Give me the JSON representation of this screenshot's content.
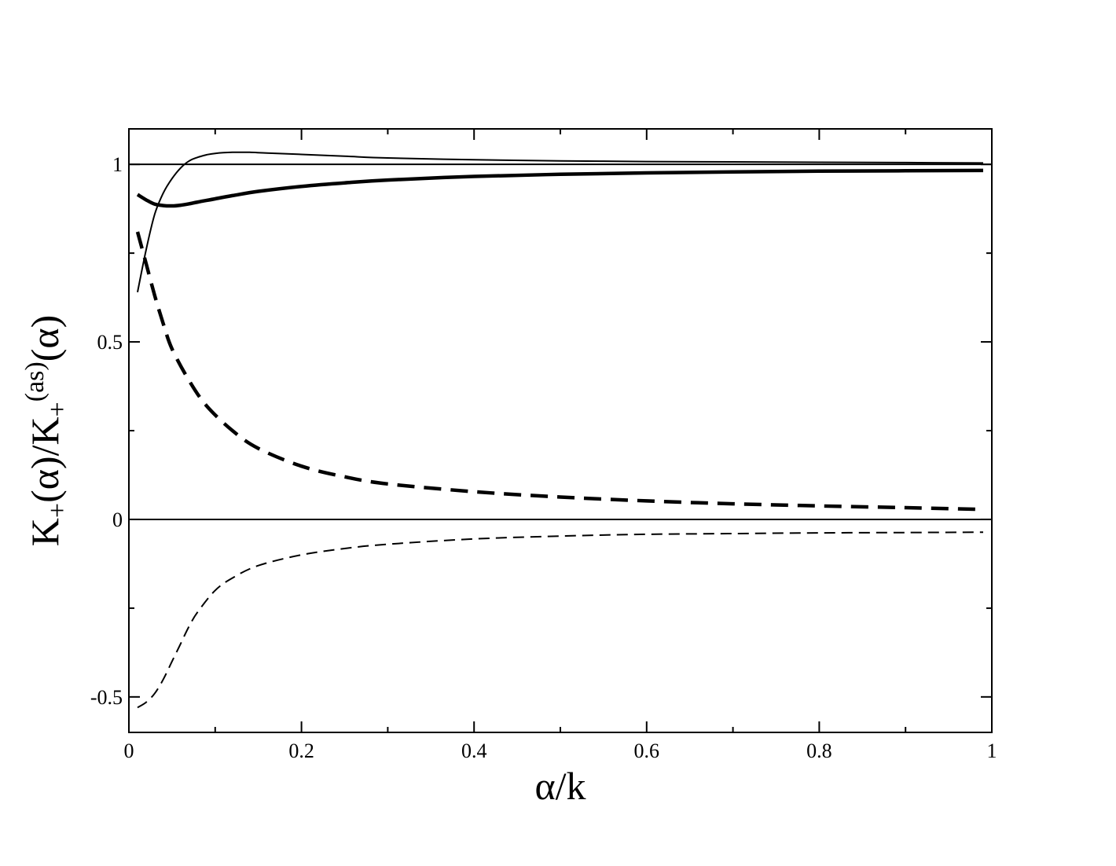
{
  "chart_data": {
    "type": "line",
    "title": "",
    "xlabel": "α/k",
    "ylabel": {
      "parts": [
        {
          "text": "K",
          "kind": "base"
        },
        {
          "text": "+",
          "kind": "sub"
        },
        {
          "text": "(α)/K",
          "kind": "base"
        },
        {
          "text": "+",
          "kind": "sub"
        },
        {
          "text": "(as)",
          "kind": "sup"
        },
        {
          "text": "(α)",
          "kind": "base"
        }
      ]
    },
    "xlim": [
      0,
      1
    ],
    "ylim": [
      -0.6,
      1.1
    ],
    "xticks": [
      0,
      0.2,
      0.4,
      0.6,
      0.8,
      1
    ],
    "xtick_labels": [
      "0",
      "0.2",
      "0.4",
      "0.6",
      "0.8",
      "1"
    ],
    "yticks": [
      -0.5,
      0,
      0.5,
      1
    ],
    "ytick_labels": [
      "-0.5",
      "0",
      "0.5",
      "1"
    ],
    "x_minor_step": 0.1,
    "y_minor_step": 0.25,
    "grid": false,
    "legend": "none",
    "reference_lines": [
      0,
      1
    ],
    "series": [
      {
        "style": "thin-solid",
        "x": [
          0.01,
          0.02,
          0.03,
          0.04,
          0.05,
          0.06,
          0.07,
          0.08,
          0.09,
          0.1,
          0.12,
          0.14,
          0.16,
          0.2,
          0.25,
          0.3,
          0.4,
          0.5,
          0.6,
          0.7,
          0.8,
          0.9,
          0.99
        ],
        "y": [
          0.64,
          0.76,
          0.86,
          0.92,
          0.96,
          0.99,
          1.01,
          1.02,
          1.027,
          1.031,
          1.034,
          1.034,
          1.032,
          1.028,
          1.023,
          1.018,
          1.013,
          1.01,
          1.008,
          1.007,
          1.006,
          1.005,
          1.004
        ]
      },
      {
        "style": "thick-solid",
        "x": [
          0.01,
          0.02,
          0.03,
          0.04,
          0.05,
          0.06,
          0.07,
          0.08,
          0.1,
          0.12,
          0.15,
          0.2,
          0.25,
          0.3,
          0.4,
          0.5,
          0.6,
          0.7,
          0.8,
          0.9,
          0.99
        ],
        "y": [
          0.915,
          0.9,
          0.888,
          0.884,
          0.883,
          0.885,
          0.889,
          0.894,
          0.903,
          0.912,
          0.924,
          0.938,
          0.948,
          0.956,
          0.966,
          0.972,
          0.976,
          0.979,
          0.981,
          0.982,
          0.983
        ]
      },
      {
        "style": "thick-dashed",
        "x": [
          0.01,
          0.02,
          0.03,
          0.04,
          0.05,
          0.07,
          0.09,
          0.12,
          0.15,
          0.2,
          0.25,
          0.3,
          0.4,
          0.5,
          0.6,
          0.7,
          0.8,
          0.9,
          0.99
        ],
        "y": [
          0.81,
          0.72,
          0.63,
          0.55,
          0.48,
          0.39,
          0.32,
          0.25,
          0.2,
          0.15,
          0.12,
          0.1,
          0.078,
          0.063,
          0.052,
          0.044,
          0.038,
          0.033,
          0.028
        ]
      },
      {
        "style": "thin-dashed",
        "x": [
          0.01,
          0.02,
          0.03,
          0.04,
          0.05,
          0.06,
          0.07,
          0.08,
          0.1,
          0.12,
          0.15,
          0.2,
          0.25,
          0.3,
          0.4,
          0.5,
          0.6,
          0.7,
          0.8,
          0.9,
          0.99
        ],
        "y": [
          -0.53,
          -0.515,
          -0.49,
          -0.45,
          -0.4,
          -0.35,
          -0.3,
          -0.26,
          -0.2,
          -0.165,
          -0.13,
          -0.1,
          -0.082,
          -0.07,
          -0.055,
          -0.047,
          -0.042,
          -0.04,
          -0.038,
          -0.037,
          -0.036
        ]
      }
    ]
  }
}
